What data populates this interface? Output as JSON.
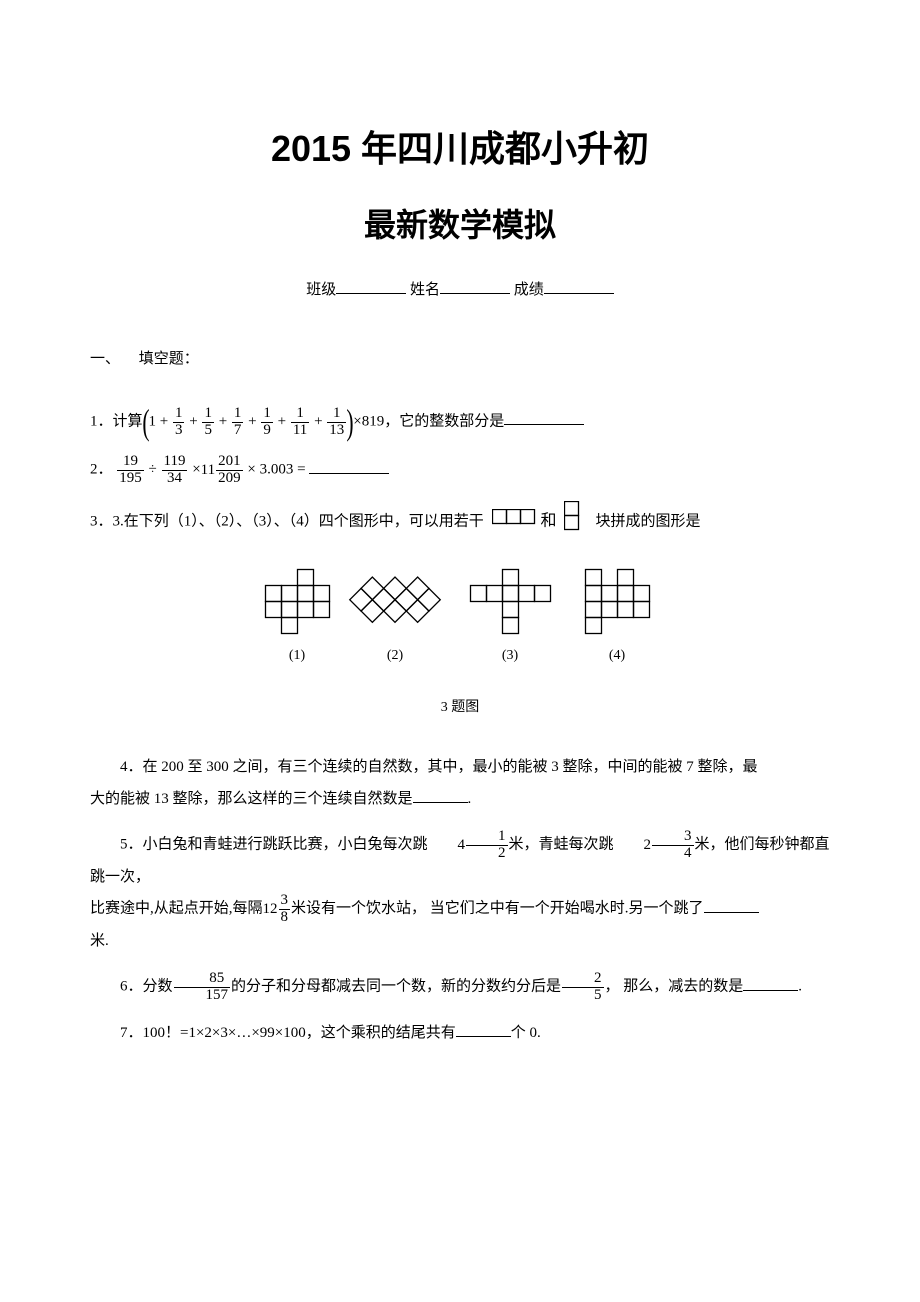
{
  "title_main": "2015 年四川成都小升初",
  "title_sub": "最新数学模拟",
  "meta": {
    "class_label": "班级",
    "name_label": "姓名",
    "score_label": "成绩"
  },
  "section1": {
    "number": "一、",
    "label": "填空题："
  },
  "q1": {
    "prefix": "1．计算",
    "suffix": "×819，它的整数部分是",
    "frac_terms": [
      {
        "n": "1",
        "d": "3"
      },
      {
        "n": "1",
        "d": "5"
      },
      {
        "n": "1",
        "d": "7"
      },
      {
        "n": "1",
        "d": "9"
      },
      {
        "n": "1",
        "d": "11"
      },
      {
        "n": "1",
        "d": "13"
      }
    ]
  },
  "q2": {
    "prefix": "2．",
    "f1": {
      "n": "19",
      "d": "195"
    },
    "op1": "÷",
    "f2": {
      "n": "119",
      "d": "34"
    },
    "op2": "×",
    "mixed_int": "11",
    "f3": {
      "n": "201",
      "d": "209"
    },
    "op3": "×",
    "dec": "3.003",
    "eq": "="
  },
  "q3": {
    "text_a": "3．3.在下列（1）、（2）、（3）、（4）四个图形中，可以用若干",
    "text_b": "和",
    "text_c": "块拼成的图形是",
    "caption": "3 题图",
    "labels": [
      "(1)",
      "(2)",
      "(3)",
      "(4)"
    ]
  },
  "q4": {
    "line1": "4．在 200 至 300 之间，有三个连续的自然数，其中，最小的能被 3 整除，中间的能被 7 整除，最",
    "line2": "大的能被 13 整除，那么这样的三个连续自然数是",
    "period": "."
  },
  "q5": {
    "line1_a": "5．小白兔和青蛙进行跳跃比赛，小白兔每次跳",
    "m1_int": "4",
    "m1": {
      "n": "1",
      "d": "2"
    },
    "line1_b": "米，青蛙每次跳",
    "m2_int": "2",
    "m2": {
      "n": "3",
      "d": "4"
    },
    "line1_c": "米，他们每秒钟都直跳一次，",
    "line2_a": "比赛途中,从起点开始,每隔",
    "m3_int": "12",
    "m3": {
      "n": "3",
      "d": "8"
    },
    "line2_b": "米设有一个饮水站，  当它们之中有一个开始喝水时.另一个跳了",
    "line3": "米."
  },
  "q6": {
    "a": "6．分数",
    "f": {
      "n": "85",
      "d": "157"
    },
    "b": "的分子和分母都减去同一个数，新的分数约分后是",
    "f2": {
      "n": "2",
      "d": "5"
    },
    "c": "， 那么，减去的数是",
    "period": "."
  },
  "q7": {
    "a": "7．100！=1×2×3×…×99×100，这个乘积的结尾共有",
    "b": "个 0."
  },
  "shapes": {
    "cell": 16,
    "stroke": "#000000",
    "stroke_width": 1.3,
    "fig1_cells": [
      [
        2,
        0
      ],
      [
        0,
        1
      ],
      [
        1,
        1
      ],
      [
        2,
        1
      ],
      [
        3,
        1
      ],
      [
        0,
        2
      ],
      [
        1,
        2
      ],
      [
        2,
        2
      ],
      [
        3,
        2
      ],
      [
        1,
        3
      ]
    ],
    "fig3_cells": [
      [
        2,
        0
      ],
      [
        0,
        1
      ],
      [
        1,
        1
      ],
      [
        2,
        1
      ],
      [
        3,
        1
      ],
      [
        4,
        1
      ],
      [
        2,
        2
      ],
      [
        2,
        3
      ]
    ],
    "fig4_cells": [
      [
        0,
        0
      ],
      [
        2,
        0
      ],
      [
        0,
        1
      ],
      [
        1,
        1
      ],
      [
        2,
        1
      ],
      [
        3,
        1
      ],
      [
        0,
        2
      ],
      [
        1,
        2
      ],
      [
        2,
        2
      ],
      [
        3,
        2
      ],
      [
        0,
        3
      ]
    ]
  }
}
